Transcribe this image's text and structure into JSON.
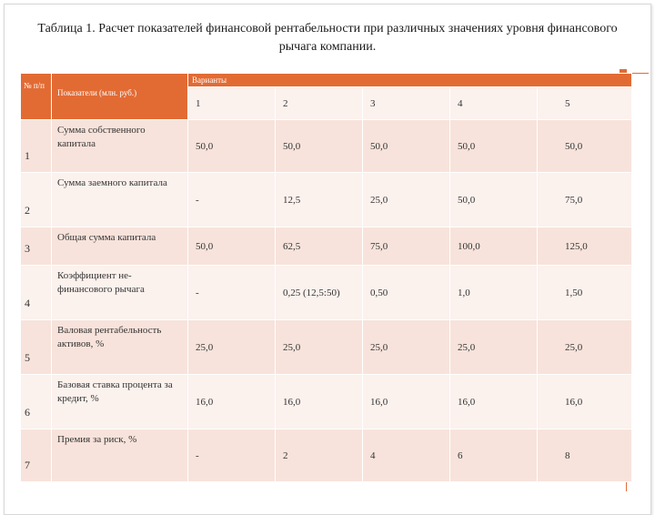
{
  "title": "Таблица 1. Расчет показателей финансовой рентабельности при различных значениях уровня финансового рычага компании.",
  "table": {
    "col_num_label": "№ п/п",
    "col_indicator_label": "Показатели (млн. руб.)",
    "variants_label": "Варианты",
    "variants": [
      "1",
      "2",
      "3",
      "4",
      "5"
    ],
    "rows": [
      {
        "num": "1",
        "indicator": "Сумма собственного капитала",
        "values": [
          "50,0",
          "50,0",
          "50,0",
          "50,0",
          "50,0"
        ]
      },
      {
        "num": "2",
        "indicator": "Сумма заемного капитала",
        "values": [
          "-",
          "12,5",
          "25,0",
          "50,0",
          "75,0"
        ]
      },
      {
        "num": "3",
        "indicator": "Общая сумма капитала",
        "values": [
          "50,0",
          "62,5",
          "75,0",
          "100,0",
          "125,0"
        ]
      },
      {
        "num": "4",
        "indicator": "Коэффициент не-финансового рычага",
        "values": [
          "-",
          "0,25 (12,5:50)",
          "0,50",
          "1,0",
          "1,50"
        ]
      },
      {
        "num": "5",
        "indicator": "Валовая рентабельность активов, %",
        "values": [
          "25,0",
          "25,0",
          "25,0",
          "25,0",
          "25,0"
        ]
      },
      {
        "num": "6",
        "indicator": "Базовая ставка процента за кредит, %",
        "values": [
          "16,0",
          "16,0",
          "16,0",
          "16,0",
          "16,0"
        ]
      },
      {
        "num": "7",
        "indicator": "Премия за риск, %",
        "values": [
          "-",
          "2",
          "4",
          "6",
          "8"
        ]
      }
    ]
  },
  "accent_color": "#e26b34"
}
